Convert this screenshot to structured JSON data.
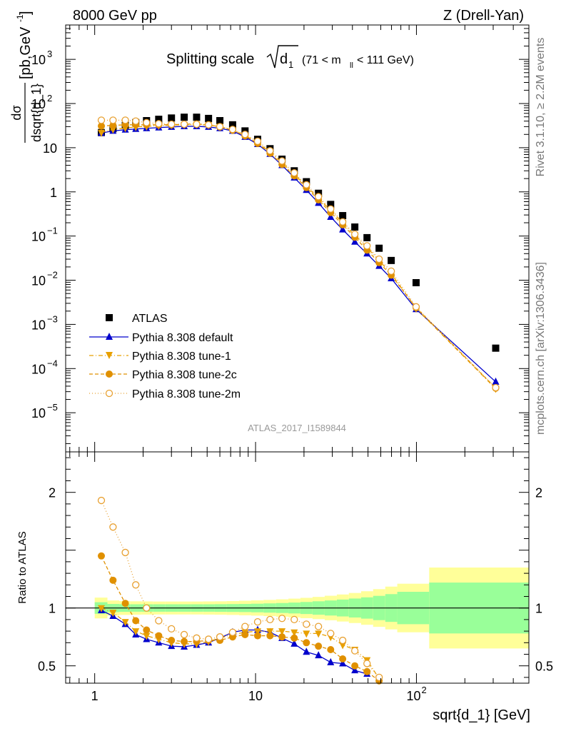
{
  "header": {
    "energy_label": "8000 GeV pp",
    "process_label": "Z (Drell-Yan)"
  },
  "side_labels": {
    "rivet": "Rivet 3.1.10, ≥ 2.2M events",
    "mcplots": "mcplots.cern.ch [arXiv:1306.3436]"
  },
  "chart_data": [
    {
      "type": "scatter",
      "title": "Splitting scale",
      "title_sqrt": "d",
      "title_sqrt_sub": "1",
      "title_cut_pre": "(71 < m",
      "title_cut_sub": "ll",
      "title_cut_post": " < 111 GeV)",
      "analysis_label": "ATLAS_2017_I1589844",
      "ylabel_num": "dσ",
      "ylabel_den": "dsqrt{d_1}",
      "ylabel_unit": "[pb,GeV",
      "ylabel_unit_sup": "-1",
      "ylabel_unit_close": "]",
      "x_scale": "log",
      "y_scale": "log",
      "xlim": [
        0.66,
        500
      ],
      "ylim": [
        1.3e-06,
        6000
      ],
      "y_ticks": [
        {
          "value": 1e-05,
          "base": "10",
          "exp": "−5"
        },
        {
          "value": 0.0001,
          "base": "10",
          "exp": "−4"
        },
        {
          "value": 0.001,
          "base": "10",
          "exp": "−3"
        },
        {
          "value": 0.01,
          "base": "10",
          "exp": "−2"
        },
        {
          "value": 0.1,
          "base": "10",
          "exp": "−1"
        },
        {
          "value": 1,
          "base": "1",
          "exp": ""
        },
        {
          "value": 10,
          "base": "10",
          "exp": ""
        },
        {
          "value": 100,
          "base": "10",
          "exp": "2"
        },
        {
          "value": 1000,
          "base": "10",
          "exp": "3"
        }
      ],
      "legend_position": "lower-left",
      "series": [
        {
          "name": "ATLAS",
          "color": "#000000",
          "marker": "square",
          "line": "none",
          "x": [
            1.1,
            1.3,
            1.55,
            1.8,
            2.1,
            2.5,
            3.0,
            3.6,
            4.3,
            5.1,
            6.0,
            7.2,
            8.6,
            10.3,
            12.3,
            14.6,
            17.4,
            20.7,
            24.6,
            29.3,
            34.8,
            41.4,
            49.3,
            58.6,
            69.7,
            99.5,
            311
          ],
          "y": [
            22,
            27,
            32,
            37,
            41,
            44,
            47,
            49,
            49,
            46,
            41,
            33,
            24,
            15.5,
            9.5,
            5.5,
            3.0,
            1.7,
            0.93,
            0.52,
            0.29,
            0.16,
            0.092,
            0.053,
            0.028,
            0.0088,
            0.00029
          ]
        },
        {
          "name": "Pythia 8.308 default",
          "color": "#0000cc",
          "marker": "triangle-up",
          "line": "solid",
          "x": [
            1.1,
            1.3,
            1.55,
            1.8,
            2.1,
            2.5,
            3.0,
            3.6,
            4.3,
            5.1,
            6.0,
            7.2,
            8.6,
            10.3,
            12.3,
            14.6,
            17.4,
            20.7,
            24.6,
            29.3,
            34.8,
            41.4,
            49.3,
            58.6,
            69.7,
            99.5,
            311
          ],
          "y": [
            21.5,
            24,
            25.5,
            26.5,
            27.5,
            28.5,
            29.5,
            30.5,
            30.5,
            29.5,
            27.5,
            24,
            17.5,
            12,
            7.2,
            4.0,
            2.1,
            1.1,
            0.56,
            0.27,
            0.14,
            0.074,
            0.04,
            0.021,
            0.011,
            0.0022,
            5e-05
          ]
        },
        {
          "name": "Pythia 8.308 tune-1",
          "color": "#e8a000",
          "marker": "triangle-down",
          "line": "dashdot",
          "x": [
            1.1,
            1.3,
            1.55,
            1.8,
            2.1,
            2.5,
            3.0,
            3.6,
            4.3,
            5.1,
            6.0,
            7.2,
            8.6,
            10.3,
            12.3,
            14.6,
            17.4,
            20.7,
            24.6,
            29.3,
            34.8,
            41.4,
            49.3,
            58.6,
            69.7,
            99.5,
            311
          ],
          "y": [
            22,
            26,
            28,
            29.5,
            30.5,
            31.5,
            32.5,
            33,
            33.5,
            32.5,
            30,
            25,
            19,
            13,
            8.0,
            4.6,
            2.5,
            1.35,
            0.72,
            0.38,
            0.2,
            0.104,
            0.055,
            0.028,
            0.014,
            0.0023,
            3.5e-05
          ]
        },
        {
          "name": "Pythia 8.308 tune-2c",
          "color": "#e09000",
          "marker": "circle",
          "line": "dashed",
          "x": [
            1.1,
            1.3,
            1.55,
            1.8,
            2.1,
            2.5,
            3.0,
            3.6,
            4.3,
            5.1,
            6.0,
            7.2,
            8.6,
            10.3,
            12.3,
            14.6,
            17.4,
            20.7,
            24.6,
            29.3,
            34.8,
            41.4,
            49.3,
            58.6,
            69.7,
            99.5,
            311
          ],
          "y": [
            31,
            32,
            33,
            33,
            33,
            33,
            33,
            34,
            34.5,
            33,
            29.5,
            25,
            18.5,
            12.5,
            7.5,
            4.2,
            2.3,
            1.25,
            0.66,
            0.34,
            0.18,
            0.094,
            0.048,
            0.025,
            0.013,
            0.0024,
            3.6e-05
          ]
        },
        {
          "name": "Pythia 8.308 tune-2m",
          "color": "#e8a030",
          "marker": "open-circle",
          "line": "dotted",
          "x": [
            1.1,
            1.3,
            1.55,
            1.8,
            2.1,
            2.5,
            3.0,
            3.6,
            4.3,
            5.1,
            6.0,
            7.2,
            8.6,
            10.3,
            12.3,
            14.6,
            17.4,
            20.7,
            24.6,
            29.3,
            34.8,
            41.4,
            49.3,
            58.6,
            69.7,
            99.5,
            311
          ],
          "y": [
            42,
            42,
            42,
            40,
            37,
            35,
            34,
            34,
            34,
            33,
            30,
            26,
            20,
            14,
            8.5,
            5.0,
            2.7,
            1.45,
            0.78,
            0.41,
            0.21,
            0.11,
            0.06,
            0.03,
            0.016,
            0.0025,
            3.7e-05
          ]
        }
      ]
    },
    {
      "type": "line",
      "ylabel": "Ratio to ATLAS",
      "xlabel": "sqrt{d_1} [GeV]",
      "x_scale": "log",
      "y_scale": "linear",
      "xlim": [
        0.66,
        500
      ],
      "ylim": [
        0.35,
        2.35
      ],
      "reference_line": 1,
      "x_ticks": [
        {
          "value": 1,
          "base": "1",
          "exp": ""
        },
        {
          "value": 10,
          "base": "10",
          "exp": ""
        },
        {
          "value": 100,
          "base": "10",
          "exp": "2"
        }
      ],
      "y_ticks": [
        {
          "value": 0.5,
          "label": "0.5"
        },
        {
          "value": 1,
          "label": "1"
        },
        {
          "value": 2,
          "label": "2"
        }
      ],
      "uncertainty_bands": {
        "edges": [
          1.0,
          1.2,
          1.42,
          1.66,
          1.95,
          2.3,
          2.75,
          3.3,
          3.95,
          4.7,
          5.55,
          6.6,
          7.9,
          9.4,
          11.2,
          13.4,
          16.0,
          19.0,
          22.6,
          26.9,
          32.0,
          38.0,
          45.3,
          53.8,
          64.0,
          76.0,
          120.0,
          500.0
        ],
        "stat_color": "#99ff99",
        "syst_color": "#ffff99",
        "stat_half_width": [
          0.05,
          0.035,
          0.033,
          0.032,
          0.032,
          0.032,
          0.032,
          0.032,
          0.032,
          0.032,
          0.033,
          0.034,
          0.035,
          0.037,
          0.04,
          0.043,
          0.047,
          0.052,
          0.058,
          0.065,
          0.073,
          0.082,
          0.092,
          0.105,
          0.12,
          0.14,
          0.22
        ],
        "total_half_width": [
          0.09,
          0.065,
          0.06,
          0.058,
          0.057,
          0.056,
          0.056,
          0.056,
          0.056,
          0.057,
          0.058,
          0.06,
          0.063,
          0.066,
          0.07,
          0.075,
          0.081,
          0.088,
          0.096,
          0.106,
          0.117,
          0.13,
          0.145,
          0.163,
          0.185,
          0.21,
          0.35
        ]
      },
      "series": [
        {
          "name": "Pythia 8.308 default",
          "color": "#0000cc",
          "marker": "triangle-up",
          "line": "solid",
          "x": [
            1.1,
            1.3,
            1.55,
            1.8,
            2.1,
            2.5,
            3.0,
            3.6,
            4.3,
            5.1,
            6.0,
            7.2,
            8.6,
            10.3,
            12.3,
            14.6,
            17.4,
            20.7,
            24.6,
            29.3,
            34.8,
            41.4,
            49.3
          ],
          "y": [
            0.98,
            0.93,
            0.86,
            0.77,
            0.73,
            0.7,
            0.67,
            0.665,
            0.68,
            0.7,
            0.74,
            0.79,
            0.81,
            0.81,
            0.79,
            0.74,
            0.69,
            0.62,
            0.59,
            0.53,
            0.52,
            0.46,
            0.43
          ]
        },
        {
          "name": "Pythia 8.308 tune-1",
          "color": "#e8a000",
          "marker": "triangle-down",
          "line": "dashdot",
          "x": [
            1.1,
            1.3,
            1.55,
            1.8,
            2.1,
            2.5,
            3.0,
            3.6,
            4.3,
            5.1,
            6.0,
            7.2,
            8.6,
            10.3,
            12.3,
            14.6,
            17.4,
            20.7,
            24.6,
            29.3,
            34.8,
            41.4,
            49.3,
            58.6
          ],
          "y": [
            1.0,
            0.96,
            0.88,
            0.8,
            0.76,
            0.73,
            0.7,
            0.69,
            0.69,
            0.71,
            0.74,
            0.77,
            0.79,
            0.8,
            0.8,
            0.8,
            0.79,
            0.78,
            0.78,
            0.75,
            0.68,
            0.64,
            0.55,
            0.39
          ]
        },
        {
          "name": "Pythia 8.308 tune-2c",
          "color": "#e09000",
          "marker": "circle",
          "line": "dashed",
          "x": [
            1.1,
            1.3,
            1.55,
            1.8,
            2.1,
            2.5,
            3.0,
            3.6,
            4.3,
            5.1,
            6.0,
            7.2,
            8.6,
            10.3,
            12.3,
            14.6,
            17.4,
            20.7,
            24.6,
            29.3,
            34.8,
            41.4,
            49.3,
            58.6
          ],
          "y": [
            1.45,
            1.24,
            1.04,
            0.89,
            0.81,
            0.76,
            0.72,
            0.71,
            0.71,
            0.72,
            0.72,
            0.75,
            0.77,
            0.76,
            0.76,
            0.75,
            0.74,
            0.7,
            0.67,
            0.64,
            0.56,
            0.5,
            0.45,
            0.37
          ]
        },
        {
          "name": "Pythia 8.308 tune-2m",
          "color": "#e8a030",
          "marker": "open-circle",
          "line": "dotted",
          "x": [
            1.1,
            1.3,
            1.55,
            1.8,
            2.1,
            2.5,
            3.0,
            3.6,
            4.3,
            5.1,
            6.0,
            7.2,
            8.6,
            10.3,
            12.3,
            14.6,
            17.4,
            20.7,
            24.6,
            29.3,
            34.8,
            41.4,
            49.3,
            58.6
          ],
          "y": [
            1.93,
            1.7,
            1.48,
            1.2,
            1.0,
            0.89,
            0.82,
            0.77,
            0.74,
            0.73,
            0.75,
            0.79,
            0.84,
            0.88,
            0.9,
            0.91,
            0.9,
            0.86,
            0.84,
            0.78,
            0.72,
            0.63,
            0.52,
            0.4
          ]
        }
      ]
    }
  ]
}
